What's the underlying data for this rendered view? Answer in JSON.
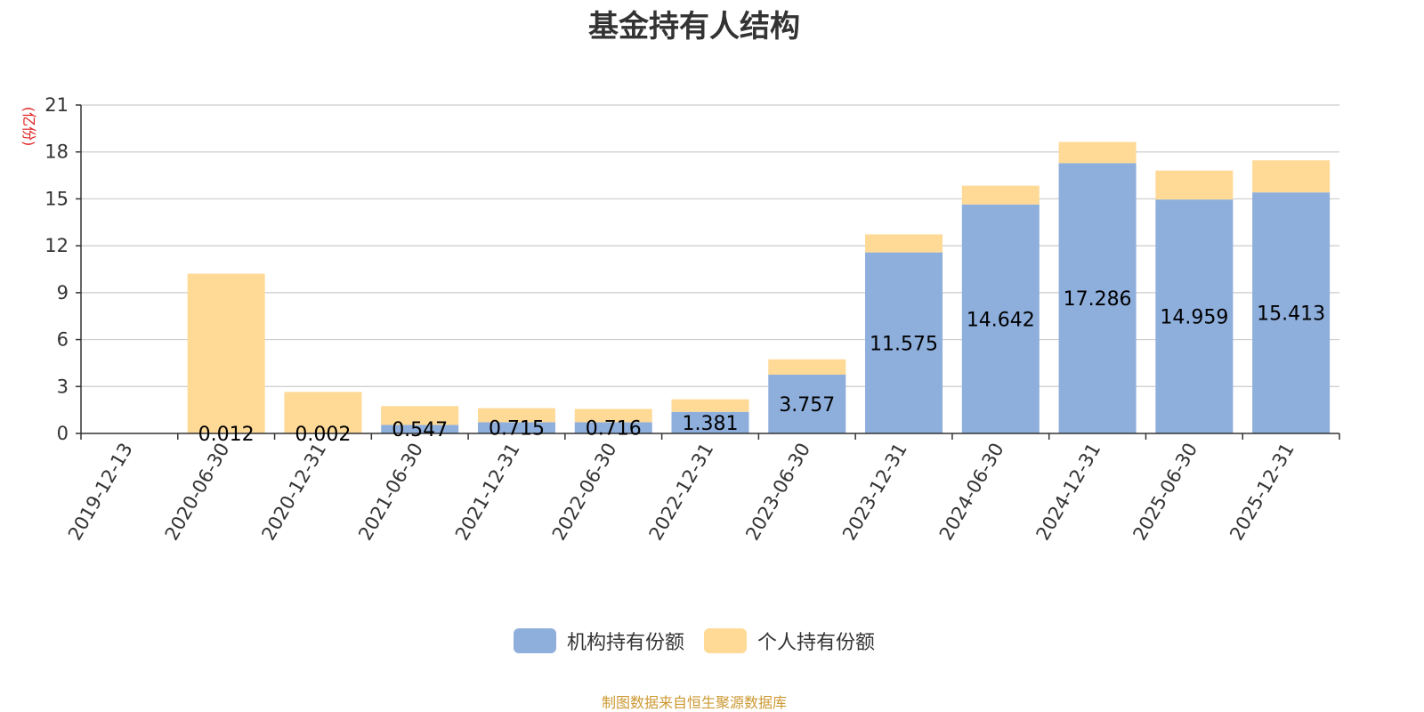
{
  "chart_data": {
    "type": "bar",
    "stacked": true,
    "title": "基金持有人结构",
    "ylabel": "(亿份)",
    "xlabel": "",
    "ylim": [
      0,
      21
    ],
    "yticks": [
      0,
      3,
      6,
      9,
      12,
      15,
      18,
      21
    ],
    "grid": true,
    "legend_position": "bottom",
    "categories": [
      "2019-12-13",
      "2020-06-30",
      "2020-12-31",
      "2021-06-30",
      "2021-12-31",
      "2022-06-30",
      "2022-12-31",
      "2023-06-30",
      "2023-12-31",
      "2024-06-30",
      "2024-12-31",
      "2025-06-30",
      "2025-12-31"
    ],
    "series": [
      {
        "name": "机构持有份额",
        "color": "#8eaedc",
        "values": [
          0,
          0.012,
          0.002,
          0.547,
          0.715,
          0.716,
          1.381,
          3.757,
          11.575,
          14.642,
          17.286,
          14.959,
          15.413
        ],
        "labels": [
          "",
          "0.012",
          "0.002",
          "0.547",
          "0.715",
          "0.716",
          "1.381",
          "3.757",
          "11.575",
          "14.642",
          "17.286",
          "14.959",
          "15.413"
        ]
      },
      {
        "name": "个人持有份额",
        "color": "#ffd996",
        "values": [
          0,
          10.2,
          2.65,
          1.2,
          0.9,
          0.85,
          0.8,
          0.98,
          1.15,
          1.2,
          1.35,
          1.85,
          2.05
        ]
      }
    ]
  },
  "source": {
    "text": "制图数据来自恒生聚源数据库",
    "color": "#cc9933"
  },
  "colors": {
    "ylabel": "#e02020",
    "axis": "#333333",
    "grid": "#cccccc"
  }
}
